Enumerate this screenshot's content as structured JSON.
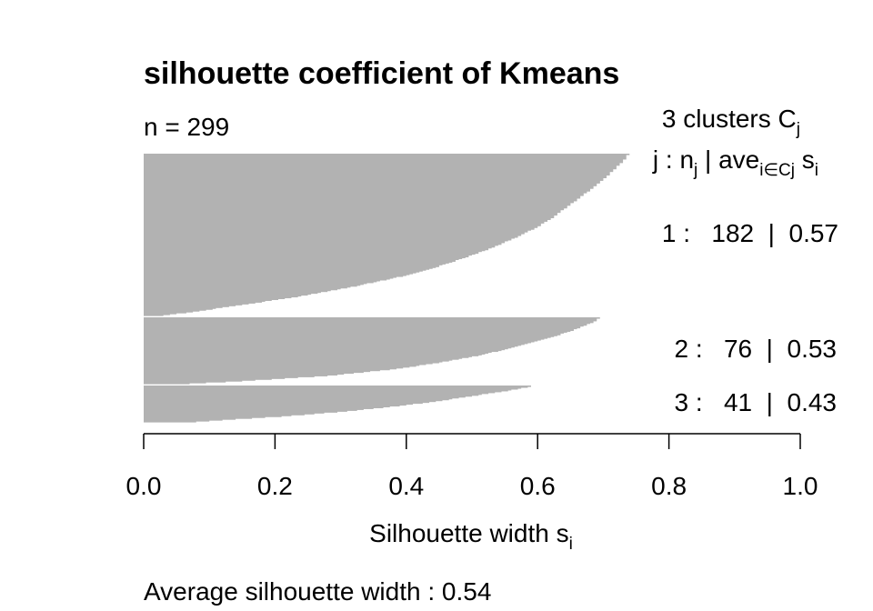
{
  "chart_data": {
    "type": "bar",
    "orientation": "horizontal",
    "title": "silhouette coefficient of Kmeans",
    "n_label": "n = 299",
    "clusters_header": {
      "count": "3",
      "word": "clusters",
      "symbol": "C",
      "symbol_sub": "j"
    },
    "columns_header": {
      "j": "j :",
      "n": "n",
      "n_sub": "j",
      "sep": "|",
      "ave": "ave",
      "ave_sub": "i∈Cj",
      "s": "s",
      "s_sub": "i"
    },
    "xlabel": "Silhouette width s",
    "xlabel_sub": "i",
    "xlim": [
      0.0,
      1.0
    ],
    "x_ticks": [
      "0.0",
      "0.2",
      "0.4",
      "0.6",
      "0.8",
      "1.0"
    ],
    "bar_color": "#b2b2b2",
    "series": [
      {
        "name": "1",
        "label": "1 :   182  |  0.57",
        "size": 182,
        "average": 0.57,
        "profile": [
          [
            0,
            0.738
          ],
          [
            0.02,
            0.735
          ],
          [
            0.05,
            0.728
          ],
          [
            0.08,
            0.72
          ],
          [
            0.12,
            0.71
          ],
          [
            0.17,
            0.695
          ],
          [
            0.22,
            0.68
          ],
          [
            0.28,
            0.66
          ],
          [
            0.34,
            0.64
          ],
          [
            0.4,
            0.62
          ],
          [
            0.46,
            0.595
          ],
          [
            0.52,
            0.565
          ],
          [
            0.58,
            0.53
          ],
          [
            0.64,
            0.49
          ],
          [
            0.7,
            0.445
          ],
          [
            0.76,
            0.39
          ],
          [
            0.82,
            0.32
          ],
          [
            0.88,
            0.24
          ],
          [
            0.94,
            0.14
          ],
          [
            0.98,
            0.07
          ],
          [
            1.0,
            0.03
          ]
        ]
      },
      {
        "name": "2",
        "label": "2 :   76  |  0.53",
        "size": 76,
        "average": 0.53,
        "profile": [
          [
            0,
            0.693
          ],
          [
            0.05,
            0.688
          ],
          [
            0.1,
            0.675
          ],
          [
            0.18,
            0.655
          ],
          [
            0.28,
            0.625
          ],
          [
            0.38,
            0.59
          ],
          [
            0.48,
            0.55
          ],
          [
            0.58,
            0.505
          ],
          [
            0.68,
            0.45
          ],
          [
            0.78,
            0.38
          ],
          [
            0.88,
            0.28
          ],
          [
            0.96,
            0.15
          ],
          [
            1.0,
            0.07
          ]
        ]
      },
      {
        "name": "3",
        "label": "3 :   41  |  0.43",
        "size": 41,
        "average": 0.43,
        "profile": [
          [
            0,
            0.588
          ],
          [
            0.06,
            0.575
          ],
          [
            0.15,
            0.545
          ],
          [
            0.27,
            0.5
          ],
          [
            0.4,
            0.455
          ],
          [
            0.55,
            0.39
          ],
          [
            0.7,
            0.31
          ],
          [
            0.85,
            0.21
          ],
          [
            0.95,
            0.12
          ],
          [
            1.0,
            0.08
          ]
        ]
      }
    ],
    "footer": "Average silhouette width :  0.54",
    "average_overall": 0.54
  }
}
